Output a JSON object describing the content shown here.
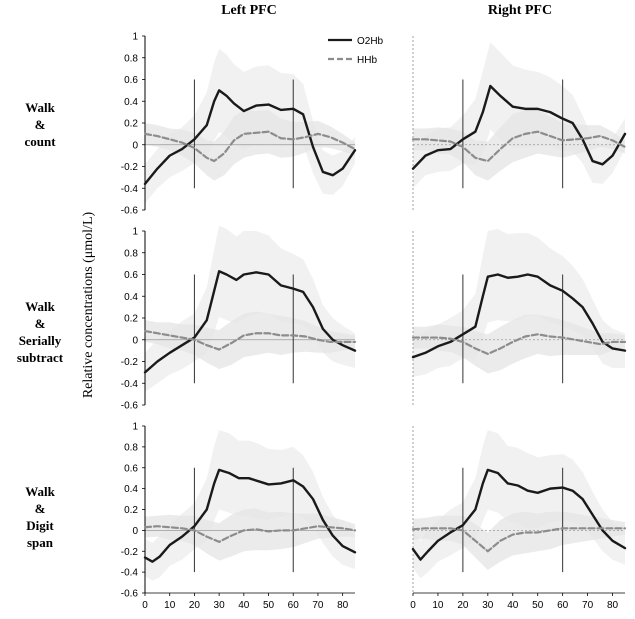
{
  "columns": [
    "Left PFC",
    "Right PFC"
  ],
  "rows": [
    [
      "Walk",
      "&",
      "count"
    ],
    [
      "Walk",
      "&",
      "Serially",
      "subtract"
    ],
    [
      "Walk",
      "&",
      "Digit",
      "span"
    ]
  ],
  "ylabel": "Relative concentrations (μmol/L)",
  "legend": [
    {
      "name": "O2Hb",
      "style": "solid",
      "color": "#1a1a1a"
    },
    {
      "name": "HHb",
      "style": "dashed",
      "color": "#8c8c8c"
    }
  ],
  "colors": {
    "band": "#e4e4e4",
    "band_hatch": "#efefef",
    "o2hb": "#1a1a1a",
    "hhb": "#8c8c8c",
    "axis": "#000000"
  },
  "chart_data": [
    {
      "type": "line",
      "panel": "Left PFC / Walk & count",
      "xlim": [
        0,
        85
      ],
      "ylim": [
        -0.6,
        1
      ],
      "xticks": [
        0,
        10,
        20,
        30,
        40,
        50,
        60,
        70,
        80
      ],
      "yticks": [
        "-0.6",
        "-0.4",
        "-0.2",
        "0",
        "0.2",
        "0.4",
        "0.6",
        "0.8",
        "1"
      ],
      "vlines": [
        20,
        60
      ],
      "series": [
        {
          "name": "O2Hb",
          "x": [
            0,
            5,
            10,
            15,
            20,
            25,
            28,
            30,
            33,
            36,
            40,
            45,
            50,
            55,
            60,
            64,
            68,
            72,
            76,
            80,
            85
          ],
          "y": [
            -0.36,
            -0.22,
            -0.1,
            -0.04,
            0.05,
            0.18,
            0.4,
            0.5,
            0.45,
            0.38,
            0.31,
            0.36,
            0.37,
            0.32,
            0.33,
            0.28,
            -0.02,
            -0.25,
            -0.28,
            -0.22,
            -0.05
          ],
          "band": [
            0.18,
            0.18,
            0.2,
            0.2,
            0.22,
            0.3,
            0.36,
            0.38,
            0.38,
            0.36,
            0.36,
            0.36,
            0.36,
            0.34,
            0.32,
            0.28,
            0.24,
            0.2,
            0.18,
            0.16,
            0.12
          ]
        },
        {
          "name": "HHb",
          "x": [
            0,
            5,
            10,
            15,
            20,
            25,
            28,
            32,
            36,
            40,
            45,
            50,
            55,
            60,
            65,
            70,
            75,
            80,
            85
          ],
          "y": [
            0.1,
            0.08,
            0.05,
            0.02,
            -0.03,
            -0.12,
            -0.15,
            -0.08,
            0.04,
            0.1,
            0.11,
            0.12,
            0.06,
            0.05,
            0.07,
            0.1,
            0.07,
            0.02,
            -0.04
          ],
          "band": [
            0.1,
            0.1,
            0.1,
            0.12,
            0.14,
            0.16,
            0.18,
            0.2,
            0.22,
            0.22,
            0.2,
            0.2,
            0.18,
            0.16,
            0.14,
            0.12,
            0.1,
            0.08,
            0.06
          ]
        }
      ]
    },
    {
      "type": "line",
      "panel": "Right PFC / Walk & count",
      "xlim": [
        0,
        85
      ],
      "ylim": [
        -0.6,
        1
      ],
      "xticks": [
        0,
        10,
        20,
        30,
        40,
        50,
        60,
        70,
        80
      ],
      "yticks": [
        "-0.6",
        "-0.4",
        "-0.2",
        "0",
        "0.2",
        "0.4",
        "0.6",
        "0.8",
        "1"
      ],
      "vlines": [
        20,
        60
      ],
      "series": [
        {
          "name": "O2Hb",
          "x": [
            0,
            5,
            10,
            15,
            20,
            25,
            28,
            31,
            35,
            40,
            45,
            50,
            55,
            60,
            64,
            68,
            72,
            76,
            80,
            85
          ],
          "y": [
            -0.22,
            -0.1,
            -0.05,
            -0.04,
            0.05,
            0.12,
            0.3,
            0.54,
            0.45,
            0.35,
            0.33,
            0.33,
            0.3,
            0.24,
            0.2,
            0.05,
            -0.15,
            -0.18,
            -0.1,
            0.1
          ],
          "band": [
            0.18,
            0.18,
            0.2,
            0.2,
            0.22,
            0.3,
            0.38,
            0.4,
            0.4,
            0.38,
            0.36,
            0.34,
            0.32,
            0.3,
            0.26,
            0.22,
            0.2,
            0.18,
            0.16,
            0.14
          ]
        },
        {
          "name": "HHb",
          "x": [
            0,
            5,
            10,
            15,
            20,
            25,
            30,
            35,
            40,
            45,
            50,
            55,
            60,
            65,
            70,
            75,
            80,
            85
          ],
          "y": [
            0.05,
            0.05,
            0.04,
            0.03,
            -0.02,
            -0.12,
            -0.15,
            -0.04,
            0.06,
            0.1,
            0.12,
            0.08,
            0.04,
            0.05,
            0.06,
            0.08,
            0.04,
            -0.02
          ],
          "band": [
            0.1,
            0.1,
            0.12,
            0.12,
            0.14,
            0.16,
            0.18,
            0.2,
            0.22,
            0.22,
            0.2,
            0.18,
            0.16,
            0.14,
            0.12,
            0.1,
            0.08,
            0.06
          ]
        }
      ]
    },
    {
      "type": "line",
      "panel": "Left PFC / Walk & Serially subtract",
      "xlim": [
        0,
        85
      ],
      "ylim": [
        -0.6,
        1
      ],
      "xticks": [
        0,
        10,
        20,
        30,
        40,
        50,
        60,
        70,
        80
      ],
      "yticks": [
        "-0.6",
        "-0.4",
        "-0.2",
        "0",
        "0.2",
        "0.4",
        "0.6",
        "0.8",
        "1"
      ],
      "vlines": [
        20,
        60
      ],
      "series": [
        {
          "name": "O2Hb",
          "x": [
            0,
            5,
            10,
            15,
            20,
            25,
            28,
            30,
            33,
            37,
            40,
            45,
            50,
            55,
            60,
            64,
            68,
            72,
            76,
            80,
            85
          ],
          "y": [
            -0.3,
            -0.2,
            -0.12,
            -0.05,
            0.02,
            0.18,
            0.45,
            0.63,
            0.6,
            0.55,
            0.6,
            0.62,
            0.6,
            0.5,
            0.47,
            0.44,
            0.3,
            0.1,
            0.0,
            -0.05,
            -0.1
          ],
          "band": [
            0.18,
            0.2,
            0.2,
            0.22,
            0.22,
            0.3,
            0.38,
            0.42,
            0.42,
            0.4,
            0.4,
            0.38,
            0.36,
            0.34,
            0.32,
            0.3,
            0.26,
            0.22,
            0.2,
            0.18,
            0.16
          ]
        },
        {
          "name": "HHb",
          "x": [
            0,
            5,
            10,
            15,
            20,
            25,
            30,
            35,
            40,
            45,
            50,
            55,
            60,
            65,
            70,
            75,
            80,
            85
          ],
          "y": [
            0.08,
            0.06,
            0.04,
            0.02,
            0.0,
            -0.05,
            -0.09,
            -0.03,
            0.04,
            0.06,
            0.06,
            0.04,
            0.04,
            0.03,
            0.0,
            -0.02,
            -0.02,
            -0.02
          ],
          "band": [
            0.1,
            0.1,
            0.12,
            0.12,
            0.14,
            0.16,
            0.18,
            0.2,
            0.2,
            0.2,
            0.18,
            0.18,
            0.16,
            0.14,
            0.12,
            0.1,
            0.08,
            0.06
          ]
        }
      ]
    },
    {
      "type": "line",
      "panel": "Right PFC / Walk & Serially subtract",
      "xlim": [
        0,
        85
      ],
      "ylim": [
        -0.6,
        1
      ],
      "xticks": [
        0,
        10,
        20,
        30,
        40,
        50,
        60,
        70,
        80
      ],
      "yticks": [
        "-0.6",
        "-0.4",
        "-0.2",
        "0",
        "0.2",
        "0.4",
        "0.6",
        "0.8",
        "1"
      ],
      "vlines": [
        20,
        60
      ],
      "series": [
        {
          "name": "O2Hb",
          "x": [
            0,
            5,
            10,
            15,
            20,
            25,
            28,
            30,
            34,
            38,
            42,
            46,
            50,
            55,
            60,
            64,
            68,
            72,
            76,
            80,
            85
          ],
          "y": [
            -0.16,
            -0.12,
            -0.06,
            -0.02,
            0.05,
            0.12,
            0.4,
            0.58,
            0.6,
            0.57,
            0.58,
            0.6,
            0.58,
            0.5,
            0.45,
            0.38,
            0.3,
            0.15,
            -0.02,
            -0.08,
            -0.1
          ],
          "band": [
            0.18,
            0.2,
            0.2,
            0.22,
            0.22,
            0.3,
            0.38,
            0.42,
            0.42,
            0.4,
            0.4,
            0.38,
            0.36,
            0.34,
            0.32,
            0.3,
            0.26,
            0.22,
            0.2,
            0.18,
            0.16
          ]
        },
        {
          "name": "HHb",
          "x": [
            0,
            5,
            10,
            15,
            20,
            25,
            30,
            35,
            40,
            45,
            50,
            55,
            60,
            65,
            70,
            75,
            80,
            85
          ],
          "y": [
            0.02,
            0.02,
            0.02,
            0.01,
            -0.02,
            -0.08,
            -0.13,
            -0.08,
            -0.02,
            0.03,
            0.05,
            0.03,
            0.02,
            0.0,
            -0.02,
            -0.04,
            -0.02,
            -0.02
          ],
          "band": [
            0.1,
            0.1,
            0.12,
            0.12,
            0.14,
            0.16,
            0.18,
            0.2,
            0.2,
            0.2,
            0.18,
            0.18,
            0.16,
            0.14,
            0.12,
            0.1,
            0.08,
            0.06
          ]
        }
      ]
    },
    {
      "type": "line",
      "panel": "Left PFC / Walk & Digit span",
      "xlim": [
        0,
        85
      ],
      "ylim": [
        -0.6,
        1
      ],
      "xticks": [
        0,
        10,
        20,
        30,
        40,
        50,
        60,
        70,
        80
      ],
      "yticks": [
        "-0.6",
        "-0.4",
        "-0.2",
        "0",
        "0.2",
        "0.4",
        "0.6",
        "0.8",
        "1"
      ],
      "vlines": [
        20,
        60
      ],
      "series": [
        {
          "name": "O2Hb",
          "x": [
            0,
            3,
            6,
            10,
            15,
            20,
            25,
            28,
            30,
            34,
            38,
            42,
            46,
            50,
            55,
            60,
            64,
            68,
            72,
            76,
            80,
            85
          ],
          "y": [
            -0.26,
            -0.3,
            -0.25,
            -0.14,
            -0.06,
            0.04,
            0.2,
            0.45,
            0.58,
            0.55,
            0.5,
            0.5,
            0.47,
            0.44,
            0.45,
            0.48,
            0.42,
            0.3,
            0.1,
            -0.05,
            -0.15,
            -0.21
          ],
          "band": [
            0.18,
            0.18,
            0.2,
            0.2,
            0.22,
            0.22,
            0.3,
            0.36,
            0.38,
            0.38,
            0.36,
            0.36,
            0.36,
            0.34,
            0.32,
            0.32,
            0.3,
            0.26,
            0.22,
            0.2,
            0.18,
            0.16
          ]
        },
        {
          "name": "HHb",
          "x": [
            0,
            5,
            10,
            15,
            20,
            25,
            30,
            35,
            40,
            45,
            50,
            55,
            60,
            65,
            70,
            75,
            80,
            85
          ],
          "y": [
            0.03,
            0.04,
            0.03,
            0.02,
            0.0,
            -0.06,
            -0.11,
            -0.05,
            0.0,
            0.01,
            -0.01,
            0.0,
            0.0,
            0.02,
            0.04,
            0.03,
            0.02,
            0.0
          ],
          "band": [
            0.1,
            0.1,
            0.12,
            0.12,
            0.14,
            0.16,
            0.18,
            0.2,
            0.2,
            0.2,
            0.18,
            0.18,
            0.16,
            0.14,
            0.12,
            0.1,
            0.08,
            0.06
          ]
        }
      ]
    },
    {
      "type": "line",
      "panel": "Right PFC / Walk & Digit span",
      "xlim": [
        0,
        85
      ],
      "ylim": [
        -0.6,
        1
      ],
      "xticks": [
        0,
        10,
        20,
        30,
        40,
        50,
        60,
        70,
        80
      ],
      "yticks": [
        "-0.6",
        "-0.4",
        "-0.2",
        "0",
        "0.2",
        "0.4",
        "0.6",
        "0.8",
        "1"
      ],
      "vlines": [
        20,
        60
      ],
      "series": [
        {
          "name": "O2Hb",
          "x": [
            0,
            3,
            6,
            10,
            15,
            20,
            25,
            28,
            30,
            34,
            38,
            42,
            46,
            50,
            55,
            60,
            64,
            68,
            72,
            76,
            80,
            85
          ],
          "y": [
            -0.18,
            -0.28,
            -0.2,
            -0.1,
            -0.02,
            0.05,
            0.2,
            0.45,
            0.58,
            0.55,
            0.45,
            0.43,
            0.38,
            0.36,
            0.4,
            0.41,
            0.38,
            0.3,
            0.15,
            0.0,
            -0.1,
            -0.17
          ],
          "band": [
            0.18,
            0.18,
            0.2,
            0.2,
            0.22,
            0.22,
            0.3,
            0.36,
            0.38,
            0.38,
            0.36,
            0.36,
            0.36,
            0.34,
            0.32,
            0.32,
            0.3,
            0.26,
            0.22,
            0.2,
            0.18,
            0.16
          ]
        },
        {
          "name": "HHb",
          "x": [
            0,
            5,
            10,
            15,
            20,
            25,
            30,
            35,
            40,
            45,
            50,
            55,
            60,
            65,
            70,
            75,
            80,
            85
          ],
          "y": [
            0.01,
            0.02,
            0.02,
            0.02,
            0.0,
            -0.1,
            -0.2,
            -0.1,
            -0.04,
            -0.02,
            -0.02,
            0.0,
            0.02,
            0.02,
            0.02,
            0.02,
            0.02,
            0.02
          ],
          "band": [
            0.1,
            0.1,
            0.12,
            0.12,
            0.14,
            0.16,
            0.18,
            0.2,
            0.2,
            0.2,
            0.18,
            0.18,
            0.16,
            0.14,
            0.12,
            0.1,
            0.08,
            0.06
          ]
        }
      ]
    }
  ]
}
